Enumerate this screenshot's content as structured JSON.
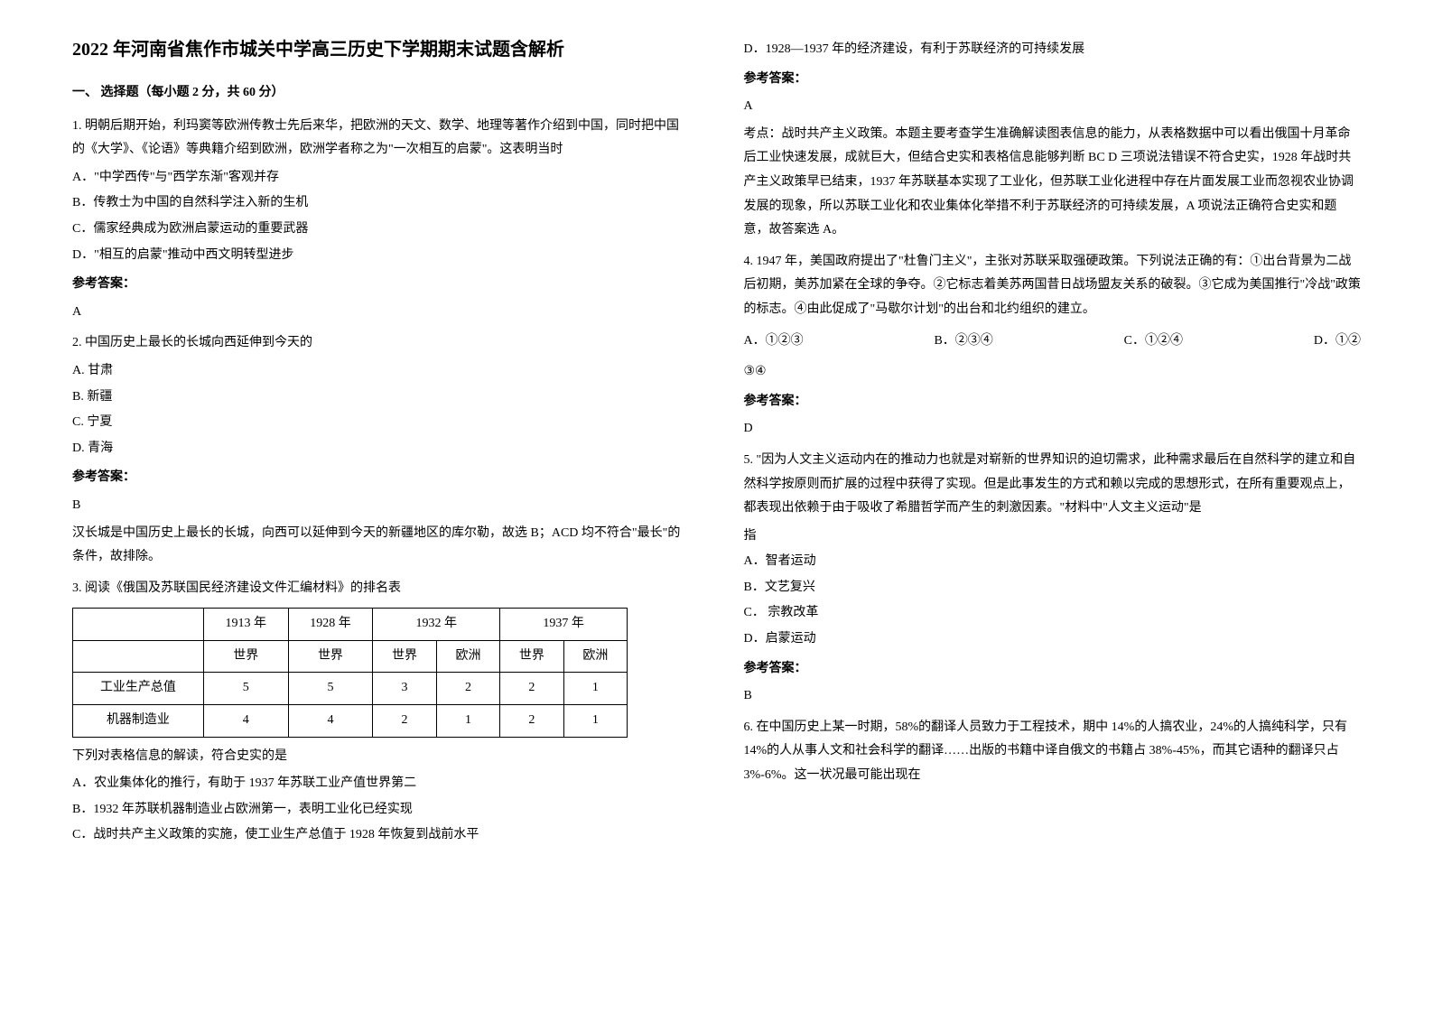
{
  "title": "2022 年河南省焦作市城关中学高三历史下学期期末试题含解析",
  "section1_header": "一、 选择题（每小题 2 分，共 60 分）",
  "q1": {
    "text": "1. 明朝后期开始，利玛窦等欧洲传教士先后来华，把欧洲的天文、数学、地理等著作介绍到中国，同时把中国的《大学》、《论语》等典籍介绍到欧洲，欧洲学者称之为\"一次相互的启蒙\"。这表明当时",
    "A": "A．\"中学西传\"与\"西学东渐\"客观并存",
    "B": "B．传教士为中国的自然科学注入新的生机",
    "C": "C．儒家经典成为欧洲启蒙运动的重要武器",
    "D": "D．\"相互的启蒙\"推动中西文明转型进步",
    "answer_label": "参考答案：",
    "answer": "A"
  },
  "q2": {
    "text": "2. 中国历史上最长的长城向西延伸到今天的",
    "A": "A. 甘肃",
    "B": "B. 新疆",
    "C": "C. 宁夏",
    "D": "D. 青海",
    "answer_label": "参考答案：",
    "answer": "B",
    "explanation": "汉长城是中国历史上最长的长城，向西可以延伸到今天的新疆地区的库尔勒，故选 B；ACD 均不符合\"最长\"的条件，故排除。"
  },
  "q3": {
    "text": "3. 阅读《俄国及苏联国民经济建设文件汇编材料》的排名表",
    "table": {
      "headers_row1": [
        "",
        "1913 年",
        "1928 年",
        "1932 年",
        "1937 年"
      ],
      "headers_row2": [
        "",
        "世界",
        "世界",
        "世界",
        "欧洲",
        "世界",
        "欧洲"
      ],
      "rows": [
        {
          "label": "工业生产总值",
          "cells": [
            "5",
            "5",
            "3",
            "2",
            "2",
            "1"
          ]
        },
        {
          "label": "机器制造业",
          "cells": [
            "4",
            "4",
            "2",
            "1",
            "2",
            "1"
          ]
        }
      ]
    },
    "subtext": "下列对表格信息的解读，符合史实的是",
    "A": "A．农业集体化的推行，有助于 1937 年苏联工业产值世界第二",
    "B": "B．1932 年苏联机器制造业占欧洲第一，表明工业化已经实现",
    "C": "C．战时共产主义政策的实施，使工业生产总值于 1928 年恢复到战前水平",
    "D": "D．1928—1937 年的经济建设，有利于苏联经济的可持续发展",
    "answer_label": "参考答案：",
    "answer": "A",
    "explanation": "考点：战时共产主义政策。本题主要考查学生准确解读图表信息的能力，从表格数据中可以看出俄国十月革命后工业快速发展，成就巨大，但结合史实和表格信息能够判断 BC D 三项说法错误不符合史实，1928 年战时共产主义政策早已结束，1937 年苏联基本实现了工业化，但苏联工业化进程中存在片面发展工业而忽视农业协调发展的现象，所以苏联工业化和农业集体化举措不利于苏联经济的可持续发展，A 项说法正确符合史实和题意，故答案选 A。"
  },
  "q4": {
    "text": "4. 1947 年，美国政府提出了\"杜鲁门主义\"，主张对苏联采取强硬政策。下列说法正确的有：①出台背景为二战后初期，美苏加紧在全球的争夺。②它标志着美苏两国昔日战场盟友关系的破裂。③它成为美国推行\"冷战\"政策的标志。④由此促成了\"马歇尔计划\"的出台和北约组织的建立。",
    "A": "A．①②③",
    "B": "B．②③④",
    "C": "C．①②④",
    "D": "D．①②",
    "D2": "③④",
    "answer_label": "参考答案：",
    "answer": "D"
  },
  "q5": {
    "text": "5. \"因为人文主义运动内在的推动力也就是对崭新的世界知识的迫切需求，此种需求最后在自然科学的建立和自然科学按原则而扩展的过程中获得了实现。但是此事发生的方式和赖以完成的思想形式，在所有重要观点上，都表现出依赖于由于吸收了希腊哲学而产生的刺激因素。\"材料中\"人文主义运动\"是",
    "subtext": "指",
    "A": "A．智者运动",
    "B": "B．文艺复兴",
    "C": "C． 宗教改革",
    "D": "D．启蒙运动",
    "answer_label": "参考答案：",
    "answer": "B"
  },
  "q6": {
    "text": "6. 在中国历史上某一时期，58%的翻译人员致力于工程技术，期中 14%的人搞农业，24%的人搞纯科学，只有 14%的人从事人文和社会科学的翻译……出版的书籍中译自俄文的书籍占 38%-45%，而其它语种的翻译只占 3%-6%。这一状况最可能出现在"
  }
}
